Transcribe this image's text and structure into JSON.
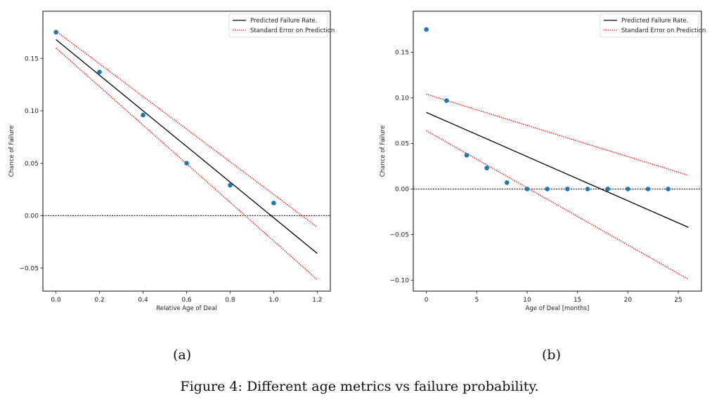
{
  "figure_caption": "Figure 4: Different age metrics vs failure probability.",
  "chart_data": [
    {
      "type": "scatter",
      "subcaption": "(a)",
      "title": "",
      "xlabel": "Relative Age of Deal",
      "ylabel": "Chance of Failure",
      "xlim": [
        -0.06,
        1.26
      ],
      "ylim": [
        -0.072,
        0.195
      ],
      "xticks": [
        0.0,
        0.2,
        0.4,
        0.6,
        0.8,
        1.0,
        1.2
      ],
      "xtick_labels": [
        "0.0",
        "0.2",
        "0.4",
        "0.6",
        "0.8",
        "1.0",
        "1.2"
      ],
      "yticks": [
        -0.05,
        0.0,
        0.05,
        0.1,
        0.15
      ],
      "ytick_labels": [
        "−0.05",
        "0.00",
        "0.05",
        "0.10",
        "0.15"
      ],
      "grid": false,
      "legend_position": "top-right",
      "points": {
        "name": "Observed",
        "color": "#1f77b4",
        "x": [
          0.0,
          0.2,
          0.4,
          0.6,
          0.8,
          1.0
        ],
        "y": [
          0.175,
          0.137,
          0.096,
          0.05,
          0.029,
          0.012
        ]
      },
      "series": [
        {
          "name": "Predicted Failure Rate.",
          "style": "solid",
          "color": "#000000",
          "x": [
            0.0,
            1.2
          ],
          "y": [
            0.168,
            -0.036
          ]
        },
        {
          "name": "Standard Error on Prediction",
          "style": "dotted",
          "color": "#ff0000",
          "x": [
            0.0,
            1.2
          ],
          "y": [
            0.176,
            -0.011
          ]
        },
        {
          "name": "Standard Error on Prediction (lower)",
          "style": "dotted",
          "color": "#ff0000",
          "x": [
            0.0,
            1.2
          ],
          "y": [
            0.16,
            -0.061
          ]
        }
      ],
      "reference_line": {
        "y": 0.0,
        "style": "dotted",
        "color": "#000000"
      },
      "legend": [
        "Predicted Failure Rate.",
        "Standard Error on Prediction"
      ]
    },
    {
      "type": "scatter",
      "subcaption": "(b)",
      "title": "",
      "xlabel": "Age of Deal [months]",
      "ylabel": "Chance of Failure",
      "xlim": [
        -1.3,
        27.3
      ],
      "ylim": [
        -0.112,
        0.195
      ],
      "xticks": [
        0,
        5,
        10,
        15,
        20,
        25
      ],
      "xtick_labels": [
        "0",
        "5",
        "10",
        "15",
        "20",
        "25"
      ],
      "yticks": [
        -0.1,
        -0.05,
        0.0,
        0.05,
        0.1,
        0.15
      ],
      "ytick_labels": [
        "−0.10",
        "−0.05",
        "0.00",
        "0.05",
        "0.10",
        "0.15"
      ],
      "grid": false,
      "legend_position": "top-right",
      "points": {
        "name": "Observed",
        "color": "#1f77b4",
        "x": [
          0,
          2,
          4,
          6,
          8,
          10,
          12,
          14,
          16,
          18,
          20,
          22,
          24
        ],
        "y": [
          0.175,
          0.097,
          0.037,
          0.023,
          0.007,
          0.0,
          0.0,
          0.0,
          0.0,
          0.0,
          0.0,
          0.0,
          0.0
        ]
      },
      "series": [
        {
          "name": "Predicted Failure Rate.",
          "style": "solid",
          "color": "#000000",
          "x": [
            0,
            26
          ],
          "y": [
            0.084,
            -0.042
          ]
        },
        {
          "name": "Standard Error on Prediction",
          "style": "dotted",
          "color": "#ff0000",
          "x": [
            0,
            26
          ],
          "y": [
            0.104,
            0.015
          ]
        },
        {
          "name": "Standard Error on Prediction (lower)",
          "style": "dotted",
          "color": "#ff0000",
          "x": [
            0,
            26
          ],
          "y": [
            0.064,
            -0.099
          ]
        }
      ],
      "reference_line": {
        "y": 0.0,
        "style": "dotted",
        "color": "#000000"
      },
      "legend": [
        "Predicted Failure Rate.",
        "Standard Error on Prediction"
      ]
    }
  ]
}
